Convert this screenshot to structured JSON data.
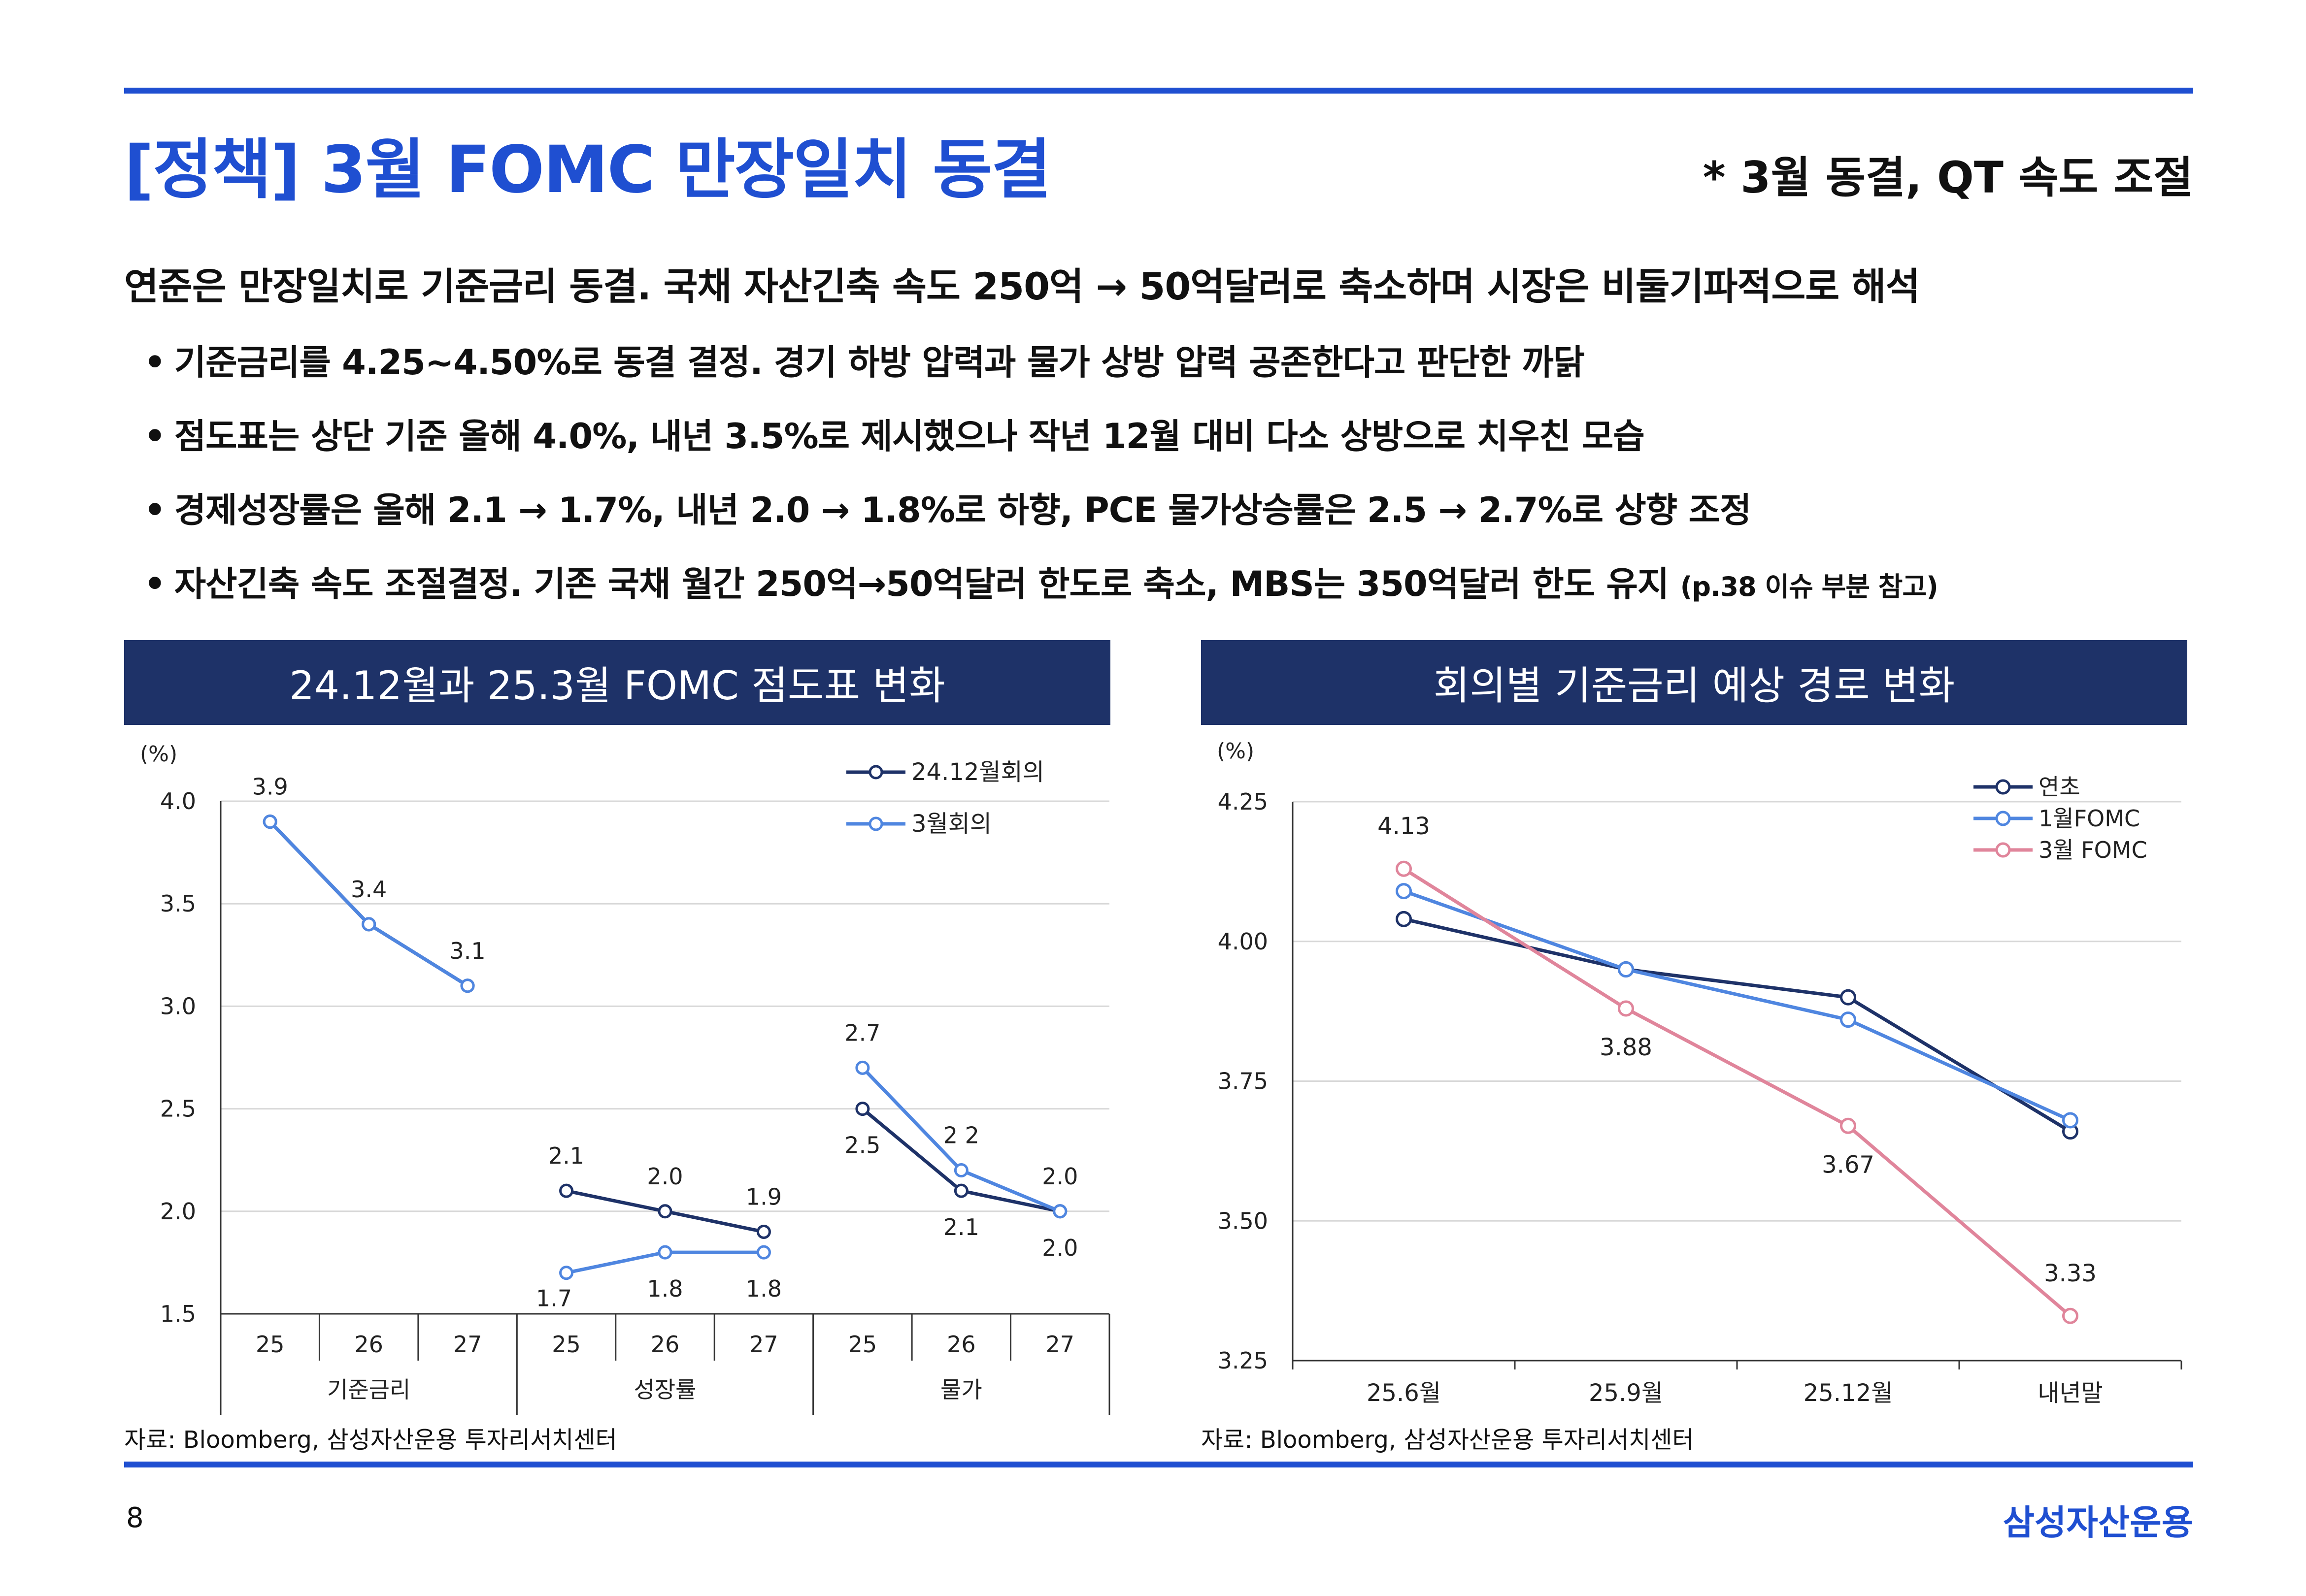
{
  "title": "[정책] 3월 FOMC 만장일치 동결",
  "subtitle": "* 3월 동결, QT 속도 조절",
  "lead": "연준은 만장일치로 기준금리 동결. 국채 자산긴축 속도 250억 → 50억달러로 축소하며 시장은 비둘기파적으로 해석",
  "bullet_mark": "•",
  "bullets": [
    "기준금리를 4.25~4.50%로 동결 결정. 경기 하방 압력과 물가 상방 압력 공존한다고 판단한 까닭",
    "점도표는 상단 기준 올해 4.0%, 내년 3.5%로 제시했으나 작년 12월 대비 다소 상방으로 치우친 모습",
    "경제성장률은 올해 2.1 → 1.7%, 내년 2.0 → 1.8%로 하향, PCE 물가상승률은 2.5 → 2.7%로 상향 조정",
    "자산긴축 속도 조절결정. 기존 국채 월간 250억→50억달러 한도로 축소, MBS는 350억달러 한도 유지"
  ],
  "bullet4_note": "(p.38 이슈 부분 참고)",
  "colors": {
    "accent": "#1f4fd1",
    "header_bg": "#1e3268",
    "dark_series": "#1e3268",
    "light_series": "#4f86e0",
    "pink_series": "#e0859b"
  },
  "chart_data": [
    {
      "type": "line",
      "title": "24.12월과 25.3월 FOMC 점도표 변화",
      "ylabel": "(%)",
      "ylim": [
        1.5,
        4.0
      ],
      "yticks": [
        "4.0",
        "3.5",
        "3.0",
        "2.5",
        "2.0",
        "1.5"
      ],
      "groups": [
        "기준금리",
        "성장률",
        "물가"
      ],
      "categories": [
        "25",
        "26",
        "27",
        "25",
        "26",
        "27",
        "25",
        "26",
        "27"
      ],
      "legend_position": "top-right",
      "series": [
        {
          "name": "24.12월회의",
          "values": [
            3.9,
            3.4,
            3.1,
            2.1,
            2.0,
            1.9,
            2.5,
            2.1,
            2.0
          ],
          "labels": [
            "",
            "",
            "",
            "2.1",
            "2.0",
            "1.9",
            "2.5",
            "2.1",
            "2.0"
          ]
        },
        {
          "name": "3월회의",
          "values": [
            3.9,
            3.4,
            3.1,
            1.7,
            1.8,
            1.8,
            2.7,
            2.2,
            2.0
          ],
          "labels": [
            "3.9",
            "3.4",
            "3.1",
            "1.7",
            "1.8",
            "1.8",
            "2.7",
            "2 2",
            "2.0"
          ]
        }
      ],
      "source": "자료: Bloomberg, 삼성자산운용 투자리서치센터"
    },
    {
      "type": "line",
      "title": "회의별 기준금리 예상 경로 변화",
      "ylabel": "(%)",
      "ylim": [
        3.25,
        4.25
      ],
      "yticks": [
        "4.25",
        "4.00",
        "3.75",
        "3.50",
        "3.25"
      ],
      "categories": [
        "25.6월",
        "25.9월",
        "25.12월",
        "내년말"
      ],
      "legend_position": "top-right",
      "series": [
        {
          "name": "연초",
          "values": [
            4.04,
            3.95,
            3.9,
            3.66
          ],
          "labels": [
            "",
            "",
            "",
            ""
          ]
        },
        {
          "name": "1월FOMC",
          "values": [
            4.09,
            3.95,
            3.86,
            3.68
          ],
          "labels": [
            "",
            "",
            "",
            ""
          ]
        },
        {
          "name": "3월 FOMC",
          "values": [
            4.13,
            3.88,
            3.67,
            3.33
          ],
          "labels": [
            "4.13",
            "3.88",
            "3.67",
            "3.33"
          ]
        }
      ],
      "source": "자료: Bloomberg, 삼성자산운용 투자리서치센터"
    }
  ],
  "page_number": "8",
  "brand": "삼성자산운용"
}
